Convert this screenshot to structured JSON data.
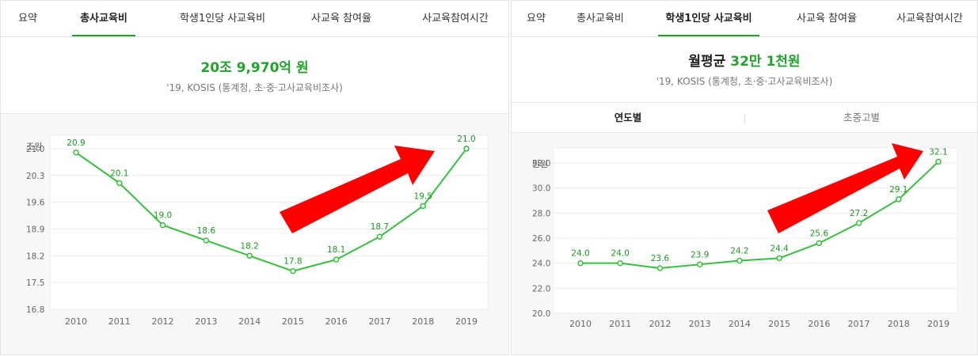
{
  "left_panel": {
    "tabs": [
      {
        "label": "요약",
        "active": false
      },
      {
        "label": "총사교육비",
        "active": true
      },
      {
        "label": "학생1인당 사교육비",
        "active": false
      },
      {
        "label": "사교육 참여율",
        "active": false
      },
      {
        "label": "사교육참여시간",
        "active": false
      }
    ],
    "headline": "20조 9,970억 원",
    "source": "'19, KOSIS (통계청, 초·중·고사교육비조사)"
  },
  "right_panel": {
    "tabs": [
      {
        "label": "요약",
        "active": false
      },
      {
        "label": "총사교육비",
        "active": false
      },
      {
        "label": "학생1인당 사교육비",
        "active": true
      },
      {
        "label": "사교육 참여율",
        "active": false
      },
      {
        "label": "사교육참여시간",
        "active": false
      }
    ],
    "headline_prefix": "월평균",
    "headline_value": "32만 1천원",
    "source": "'19, KOSIS (통계청, 초·중·고사교육비조사)",
    "subtabs": [
      {
        "label": "연도별",
        "active": true
      },
      {
        "label": "초중고별",
        "active": false
      }
    ]
  },
  "colors": {
    "accent": "#1fa52a",
    "line": "#33c33a",
    "arrow": "#ff0000"
  },
  "chart_data": [
    {
      "type": "line",
      "ylabel": "조원",
      "x": [
        "2010",
        "2011",
        "2012",
        "2013",
        "2014",
        "2015",
        "2016",
        "2017",
        "2018",
        "2019"
      ],
      "values": [
        20.9,
        20.1,
        19.0,
        18.6,
        18.2,
        17.8,
        18.1,
        18.7,
        19.5,
        21.0
      ],
      "value_labels": [
        "20.9",
        "20.1",
        "19.0",
        "18.6",
        "18.2",
        "17.8",
        "18.1",
        "18.7",
        "19.5",
        "21.0"
      ],
      "yticks": [
        16.8,
        17.5,
        18.2,
        18.9,
        19.6,
        20.3,
        21.0
      ],
      "ytick_labels": [
        "16.8",
        "17.5",
        "18.2",
        "18.9",
        "19.6",
        "20.3",
        "21.0"
      ],
      "ylim": [
        16.8,
        21.35
      ],
      "grid": true,
      "annotation": "upward-arrow"
    },
    {
      "type": "line",
      "ylabel": "만원",
      "x": [
        "2010",
        "2011",
        "2012",
        "2013",
        "2014",
        "2015",
        "2016",
        "2017",
        "2018",
        "2019"
      ],
      "values": [
        24.0,
        24.0,
        23.6,
        23.9,
        24.2,
        24.4,
        25.6,
        27.2,
        29.1,
        32.1
      ],
      "value_labels": [
        "24.0",
        "24.0",
        "23.6",
        "23.9",
        "24.2",
        "24.4",
        "25.6",
        "27.2",
        "29.1",
        "32.1"
      ],
      "yticks": [
        20.0,
        22.0,
        24.0,
        26.0,
        28.0,
        30.0,
        32.0
      ],
      "ytick_labels": [
        "20.0",
        "22.0",
        "24.0",
        "26.0",
        "28.0",
        "30.0",
        "32.0"
      ],
      "ylim": [
        20.0,
        33.2
      ],
      "grid": true,
      "annotation": "upward-arrow"
    }
  ]
}
